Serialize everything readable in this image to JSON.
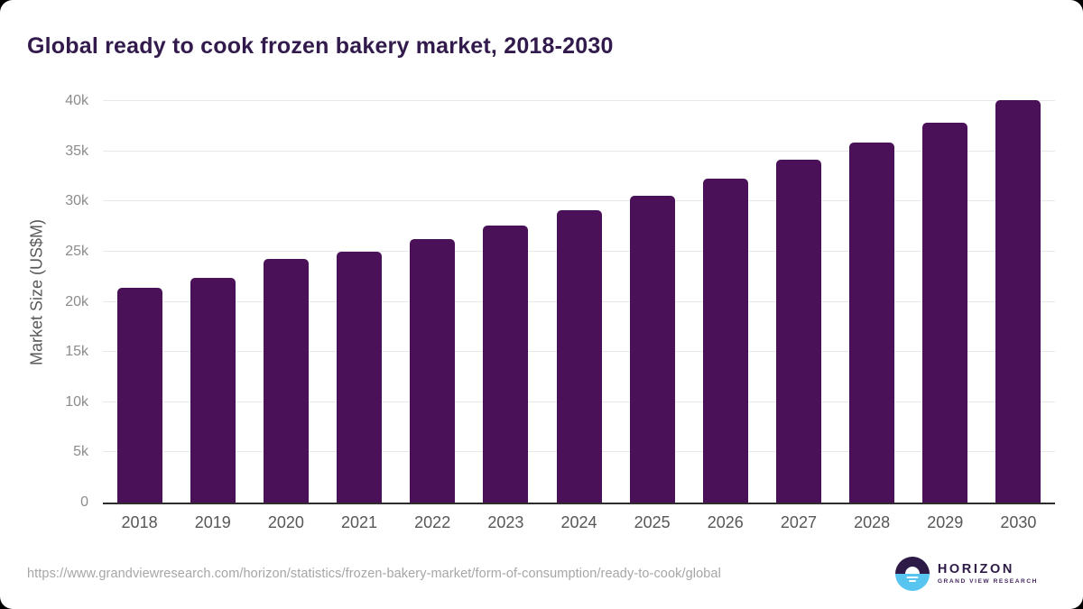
{
  "page": {
    "title": "Global ready to cook frozen bakery market, 2018-2030"
  },
  "chart_data": {
    "type": "bar",
    "title": "Global ready to cook frozen bakery market, 2018-2030",
    "categories": [
      "2018",
      "2019",
      "2020",
      "2021",
      "2022",
      "2023",
      "2024",
      "2025",
      "2026",
      "2027",
      "2028",
      "2029",
      "2030"
    ],
    "values": [
      21400,
      22400,
      24300,
      25000,
      26300,
      27600,
      29100,
      30600,
      32300,
      34200,
      35900,
      37900,
      40100
    ],
    "xlabel": "",
    "ylabel": "Market Size (US$M)",
    "ylim": [
      0,
      42000
    ],
    "yticks": [
      {
        "value": 0,
        "label": "0"
      },
      {
        "value": 5000,
        "label": "5k"
      },
      {
        "value": 10000,
        "label": "10k"
      },
      {
        "value": 15000,
        "label": "15k"
      },
      {
        "value": 20000,
        "label": "20k"
      },
      {
        "value": 25000,
        "label": "25k"
      },
      {
        "value": 30000,
        "label": "30k"
      },
      {
        "value": 35000,
        "label": "35k"
      },
      {
        "value": 40000,
        "label": "40k"
      }
    ],
    "grid": "horizontal",
    "legend": "none"
  },
  "footer": {
    "source_url": "https://www.grandviewresearch.com/horizon/statistics/frozen-bakery-market/form-of-consumption/ready-to-cook/global"
  },
  "logo": {
    "brand": "HORIZON",
    "subtitle": "GRAND VIEW RESEARCH",
    "icon": "horizon-sunrise-icon"
  },
  "colors": {
    "bar": "#4a1058",
    "title": "#321b4c",
    "gridline": "#e8e8e8",
    "axis": "#2d2d2d",
    "logo_dark": "#2e1a47",
    "logo_blue": "#58c5f0"
  }
}
